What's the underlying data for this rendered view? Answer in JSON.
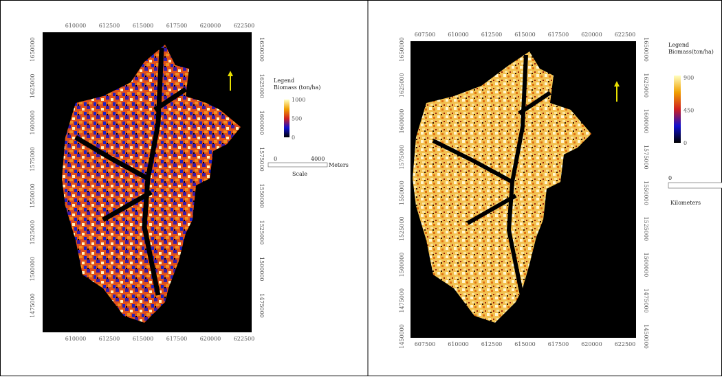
{
  "panels": [
    {
      "x_ticks": [
        610000,
        612500,
        615000,
        617500,
        620000,
        622500
      ],
      "y_ticks": [
        1650000,
        1625000,
        1600000,
        1575000,
        1550000,
        1525000,
        1500000,
        1475000
      ],
      "legend": {
        "title": "Legend",
        "subtitle": "Biomass (ton/ha)",
        "ticks": [
          1000,
          500,
          0
        ]
      },
      "scale": {
        "start": "0",
        "end": "4000",
        "unit": "Meters",
        "caption": "Scale"
      }
    },
    {
      "x_ticks": [
        607500,
        610000,
        612500,
        615000,
        617500,
        620000,
        622500
      ],
      "y_ticks": [
        1650000,
        1625000,
        1600000,
        1575000,
        1550000,
        1525000,
        1500000,
        1475000,
        1450000
      ],
      "legend": {
        "title": "Legend",
        "subtitle": "Biomass(ton/ha)",
        "ticks": [
          900,
          450,
          0
        ]
      },
      "scale": {
        "start": "0",
        "unit": "Kilometers"
      }
    }
  ]
}
